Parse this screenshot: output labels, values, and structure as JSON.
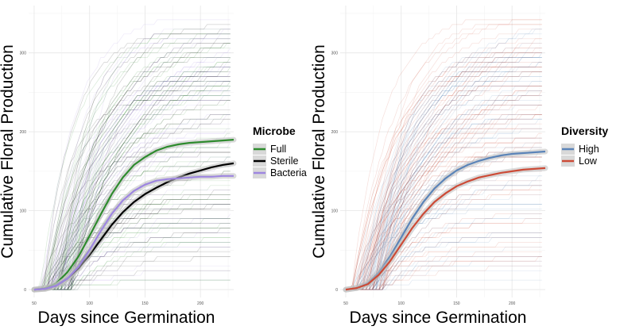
{
  "chart_data": [
    {
      "type": "line",
      "xlabel": "Days since Germination",
      "ylabel": "Cumulative Floral Production",
      "xlim": [
        45,
        230
      ],
      "ylim": [
        -10,
        360
      ],
      "x_ticks": [
        50,
        100,
        150,
        200
      ],
      "y_ticks": [
        0,
        100,
        200,
        300
      ],
      "grid": true,
      "legend_position": "right",
      "legend": {
        "title": "Microbe",
        "entries": [
          {
            "label": "Full",
            "color": "#2e8b2e"
          },
          {
            "label": "Sterile",
            "color": "#000000"
          },
          {
            "label": "Bacteria",
            "color": "#9e86e0"
          }
        ]
      },
      "series": [
        {
          "name": "Full",
          "color": "#2e8b2e",
          "x": [
            50,
            60,
            70,
            80,
            90,
            100,
            110,
            120,
            130,
            140,
            150,
            160,
            170,
            180,
            190,
            200,
            210,
            220,
            230
          ],
          "y": [
            0,
            2,
            8,
            22,
            42,
            68,
            95,
            121,
            142,
            158,
            168,
            176,
            181,
            184,
            186,
            187,
            188,
            189,
            190
          ]
        },
        {
          "name": "Sterile",
          "color": "#000000",
          "x": [
            50,
            60,
            70,
            80,
            90,
            100,
            110,
            120,
            130,
            140,
            150,
            160,
            170,
            180,
            190,
            200,
            210,
            220,
            230
          ],
          "y": [
            0,
            1,
            5,
            14,
            27,
            44,
            63,
            82,
            98,
            111,
            121,
            129,
            136,
            142,
            147,
            151,
            155,
            158,
            160
          ]
        },
        {
          "name": "Bacteria",
          "color": "#9e86e0",
          "x": [
            50,
            60,
            70,
            80,
            90,
            100,
            110,
            120,
            130,
            140,
            150,
            160,
            170,
            180,
            190,
            200,
            210,
            220,
            230
          ],
          "y": [
            0,
            1,
            5,
            14,
            29,
            50,
            74,
            96,
            113,
            125,
            133,
            138,
            140,
            141,
            142,
            143,
            143,
            144,
            144
          ]
        }
      ]
    },
    {
      "type": "line",
      "xlabel": "Days since Germination",
      "ylabel": "Cumulative Floral Production",
      "xlim": [
        45,
        230
      ],
      "ylim": [
        -10,
        360
      ],
      "x_ticks": [
        50,
        100,
        150,
        200
      ],
      "y_ticks": [
        0,
        100,
        200,
        300
      ],
      "grid": true,
      "legend_position": "right",
      "legend": {
        "title": "Diversity",
        "entries": [
          {
            "label": "High",
            "color": "#5b84b8"
          },
          {
            "label": "Low",
            "color": "#cc4b37"
          }
        ]
      },
      "series": [
        {
          "name": "High",
          "color": "#5b84b8",
          "x": [
            50,
            60,
            70,
            80,
            90,
            100,
            110,
            120,
            130,
            140,
            150,
            160,
            170,
            180,
            190,
            200,
            210,
            220,
            230
          ],
          "y": [
            0,
            2,
            8,
            22,
            42,
            66,
            90,
            111,
            128,
            141,
            151,
            158,
            163,
            167,
            170,
            172,
            173,
            174,
            175
          ]
        },
        {
          "name": "Low",
          "color": "#cc4b37",
          "x": [
            50,
            60,
            70,
            80,
            90,
            100,
            110,
            120,
            130,
            140,
            150,
            160,
            170,
            180,
            190,
            200,
            210,
            220,
            230
          ],
          "y": [
            0,
            2,
            7,
            19,
            36,
            57,
            78,
            96,
            111,
            122,
            131,
            137,
            142,
            145,
            148,
            150,
            152,
            153,
            154
          ]
        }
      ]
    }
  ]
}
